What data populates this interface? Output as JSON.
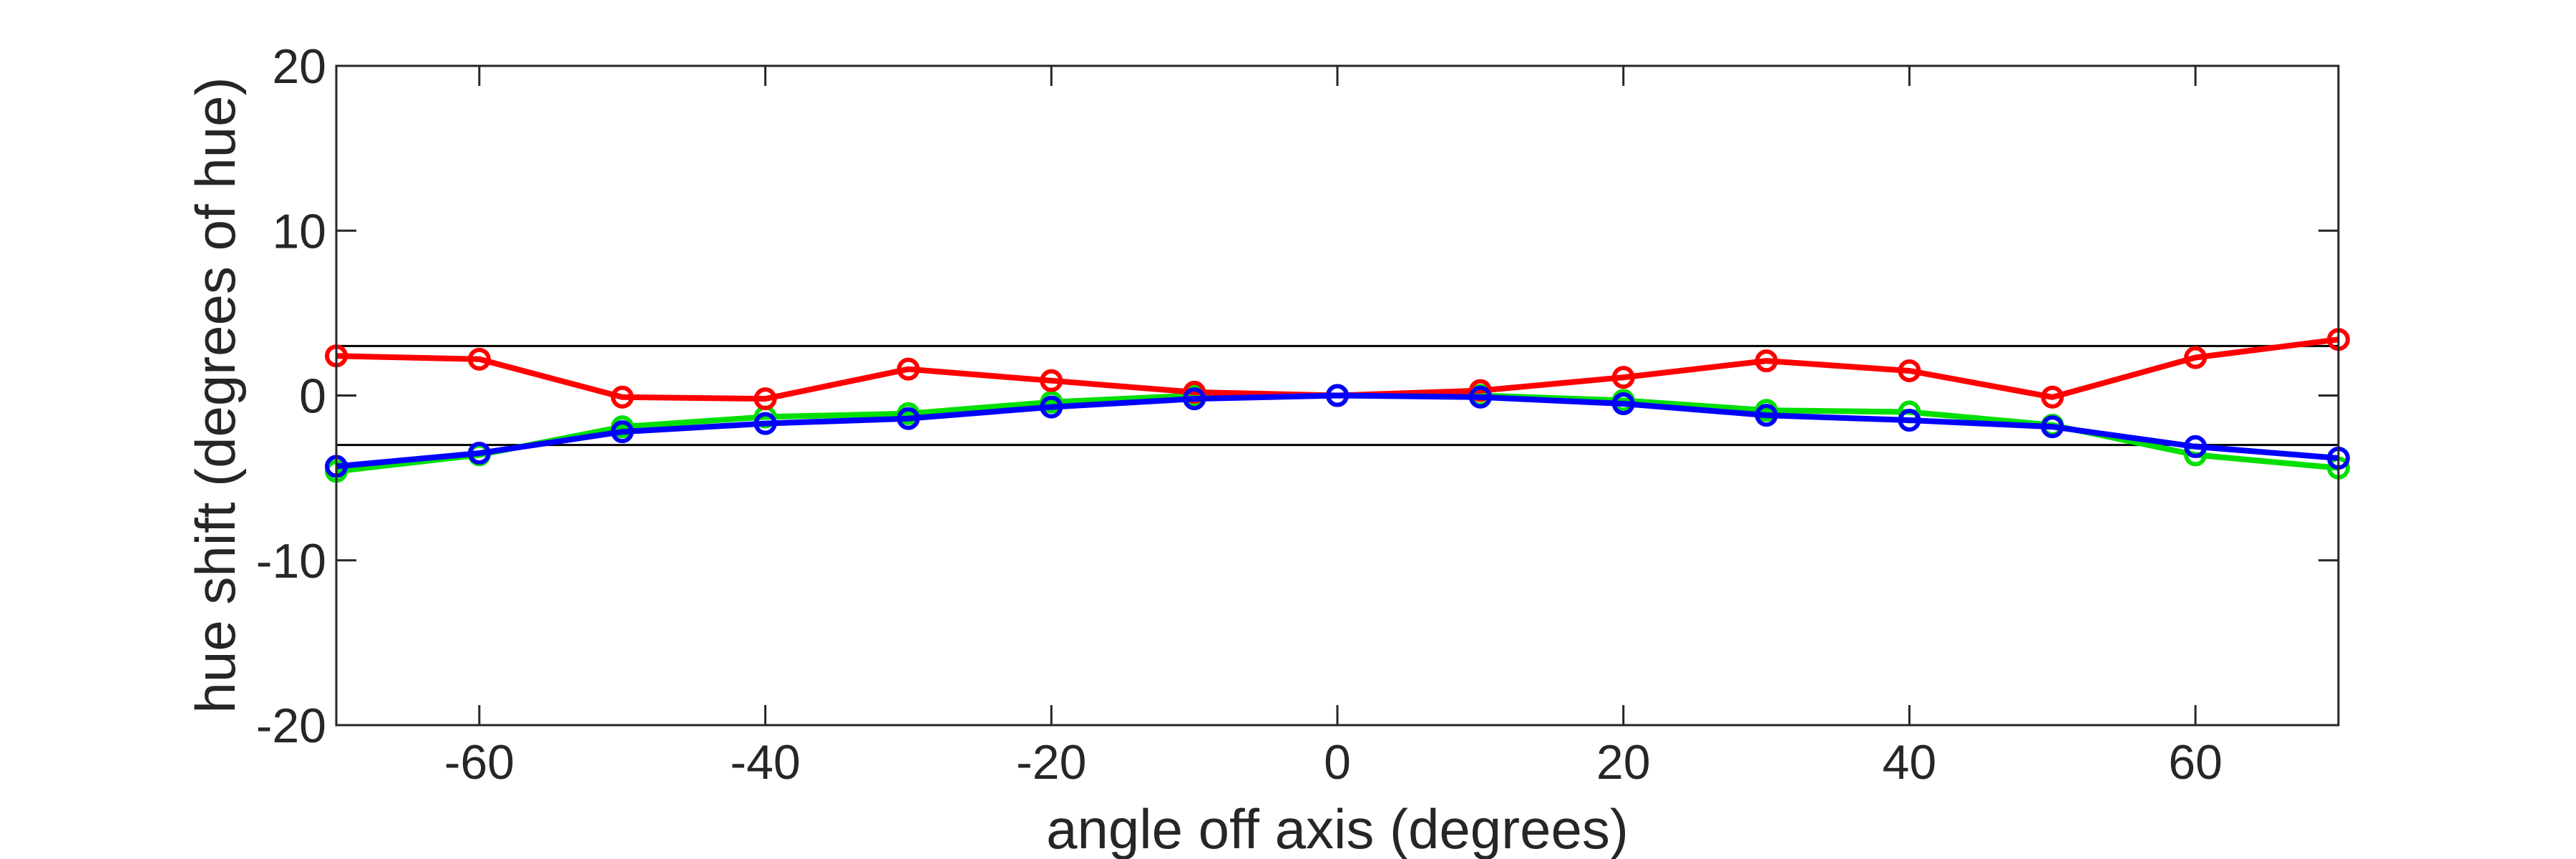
{
  "chart_data": {
    "type": "line",
    "title": "",
    "xlabel": "angle off axis (degrees)",
    "ylabel": "hue shift (degrees of hue)",
    "xlim": [
      -70,
      70
    ],
    "ylim": [
      -20,
      20
    ],
    "xticks": [
      -60,
      -40,
      -20,
      0,
      20,
      40,
      60
    ],
    "yticks": [
      -20,
      -10,
      0,
      10,
      20
    ],
    "xtick_labels": [
      "-60",
      "-40",
      "-20",
      "0",
      "20",
      "40",
      "60"
    ],
    "ytick_labels": [
      "-20",
      "-10",
      "0",
      "10",
      "20"
    ],
    "grid": false,
    "legend": "none",
    "x": [
      -70,
      -60,
      -50,
      -40,
      -30,
      -20,
      -10,
      0,
      10,
      20,
      30,
      40,
      50,
      60,
      70
    ],
    "reference_lines": [
      3,
      -3
    ],
    "series": [
      {
        "color": "#00e000",
        "values": [
          -4.6,
          -3.6,
          -1.9,
          -1.3,
          -1.1,
          -0.4,
          0.0,
          0.0,
          0.0,
          -0.3,
          -0.9,
          -1.0,
          -1.8,
          -3.6,
          -4.4
        ]
      },
      {
        "color": "#ff0000",
        "values": [
          2.4,
          2.2,
          -0.1,
          -0.2,
          1.6,
          0.9,
          0.2,
          0.0,
          0.3,
          1.1,
          2.1,
          1.5,
          -0.1,
          2.3,
          3.4
        ]
      },
      {
        "color": "#0000ff",
        "values": [
          -4.3,
          -3.5,
          -2.2,
          -1.7,
          -1.4,
          -0.7,
          -0.2,
          0.0,
          -0.1,
          -0.5,
          -1.2,
          -1.5,
          -1.9,
          -3.1,
          -3.8
        ]
      }
    ]
  }
}
